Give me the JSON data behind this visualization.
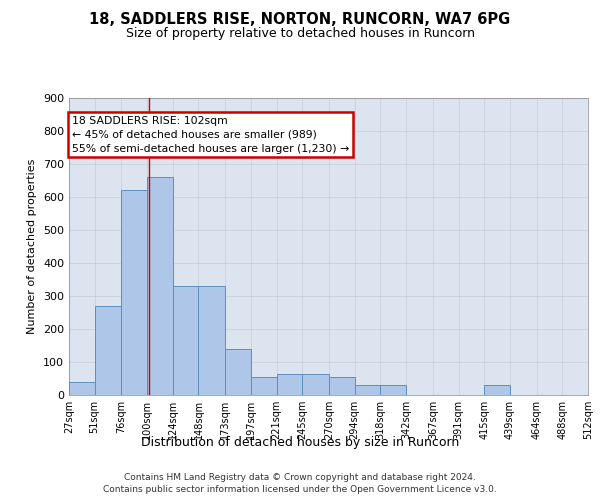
{
  "title1": "18, SADDLERS RISE, NORTON, RUNCORN, WA7 6PG",
  "title2": "Size of property relative to detached houses in Runcorn",
  "xlabel": "Distribution of detached houses by size in Runcorn",
  "ylabel": "Number of detached properties",
  "footnote1": "Contains HM Land Registry data © Crown copyright and database right 2024.",
  "footnote2": "Contains public sector information licensed under the Open Government Licence v3.0.",
  "annotation_line1": "18 SADDLERS RISE: 102sqm",
  "annotation_line2": "← 45% of detached houses are smaller (989)",
  "annotation_line3": "55% of semi-detached houses are larger (1,230) →",
  "property_size": 102,
  "bin_edges": [
    27,
    51,
    76,
    100,
    124,
    148,
    173,
    197,
    221,
    245,
    270,
    294,
    318,
    342,
    367,
    391,
    415,
    439,
    464,
    488,
    512
  ],
  "bar_heights": [
    40,
    270,
    620,
    660,
    330,
    330,
    140,
    55,
    65,
    65,
    55,
    30,
    30,
    0,
    0,
    0,
    30,
    0,
    0,
    0
  ],
  "bar_color": "#aec6e8",
  "bar_edge_color": "#5a8fc0",
  "red_line_color": "#cc0000",
  "annotation_box_color": "#cc0000",
  "background_color": "#ffffff",
  "grid_color": "#c8d0dc",
  "ylim": [
    0,
    900
  ],
  "yticks": [
    0,
    100,
    200,
    300,
    400,
    500,
    600,
    700,
    800,
    900
  ],
  "ax_facecolor": "#dce4f0"
}
